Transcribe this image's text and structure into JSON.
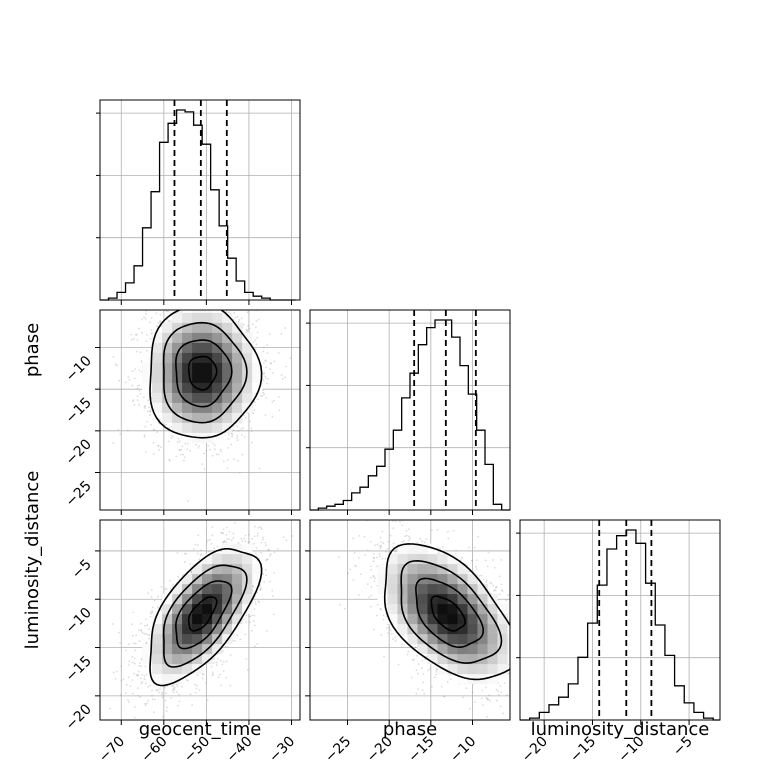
{
  "chart_data": {
    "type": "corner",
    "parameters": [
      "geocent_time",
      "phase",
      "luminosity_distance"
    ],
    "axes": {
      "geocent_time": {
        "range": [
          -75,
          -28
        ],
        "ticks": [
          -70,
          -60,
          -50,
          -40,
          -30
        ]
      },
      "phase": {
        "range": [
          -29.5,
          -5.5
        ],
        "ticks": [
          -25,
          -20,
          -15,
          -10
        ]
      },
      "luminosity_distance": {
        "range": [
          -22.5,
          -1.8
        ],
        "ticks": [
          -20,
          -15,
          -10,
          -5
        ]
      }
    },
    "diag_ticks": 3,
    "marginals": [
      {
        "parameter": "geocent_time",
        "bin_edges": [
          -75,
          -73,
          -71,
          -69,
          -67,
          -65,
          -63,
          -61,
          -59,
          -57,
          -55,
          -53,
          -51,
          -49,
          -47,
          -45,
          -43,
          -41,
          -39,
          -37,
          -35,
          -33,
          -31,
          -29
        ],
        "counts": [
          0,
          0.01,
          0.04,
          0.09,
          0.18,
          0.38,
          0.57,
          0.83,
          0.93,
          1.0,
          0.99,
          0.92,
          0.82,
          0.58,
          0.39,
          0.22,
          0.1,
          0.04,
          0.02,
          0.01,
          0,
          0,
          0
        ],
        "quantiles": [
          -57.5,
          -51.3,
          -45.2
        ]
      },
      {
        "parameter": "phase",
        "bin_edges": [
          -29.5,
          -28.5,
          -27.5,
          -26.5,
          -25.5,
          -24.5,
          -23.5,
          -22.5,
          -21.5,
          -20.5,
          -19.5,
          -18.5,
          -17.5,
          -16.5,
          -15.5,
          -14.5,
          -13.5,
          -12.5,
          -11.5,
          -10.5,
          -9.5,
          -8.5,
          -7.5,
          -6.5,
          -5.5
        ],
        "counts": [
          0,
          0.01,
          0.02,
          0.03,
          0.05,
          0.09,
          0.12,
          0.18,
          0.23,
          0.32,
          0.42,
          0.59,
          0.72,
          0.87,
          0.96,
          1.0,
          1.0,
          0.91,
          0.76,
          0.61,
          0.42,
          0.24,
          0.03,
          0
        ],
        "quantiles": [
          -17.0,
          -13.2,
          -9.6
        ]
      },
      {
        "parameter": "luminosity_distance",
        "bin_edges": [
          -22.5,
          -21.5,
          -20.5,
          -19.5,
          -18.5,
          -17.5,
          -16.5,
          -15.5,
          -14.5,
          -13.5,
          -12.5,
          -11.5,
          -10.5,
          -9.5,
          -8.5,
          -7.5,
          -6.5,
          -5.5,
          -4.5,
          -3.5,
          -2.5,
          -1.8
        ],
        "counts": [
          0,
          0.01,
          0.04,
          0.08,
          0.12,
          0.19,
          0.33,
          0.51,
          0.71,
          0.9,
          0.97,
          1.0,
          0.93,
          0.72,
          0.5,
          0.34,
          0.18,
          0.09,
          0.04,
          0.01,
          0
        ],
        "quantiles": [
          -14.3,
          -11.5,
          -8.9
        ]
      }
    ],
    "joints": [
      {
        "x": "geocent_time",
        "y": "phase",
        "mean": [
          -51,
          -13
        ],
        "sd": [
          6.5,
          4
        ],
        "rho": 0,
        "points": 2600
      },
      {
        "x": "geocent_time",
        "y": "luminosity_distance",
        "mean": [
          -51,
          -11.5
        ],
        "sd": [
          6.5,
          3.5
        ],
        "rho": 0.62,
        "points": 2600
      },
      {
        "x": "phase",
        "y": "luminosity_distance",
        "mean": [
          -13,
          -11.5
        ],
        "sd": [
          4,
          3.5
        ],
        "rho": -0.5,
        "points": 2600
      }
    ],
    "contour_levels": [
      0.5,
      1.0,
      1.5,
      2.0
    ]
  }
}
